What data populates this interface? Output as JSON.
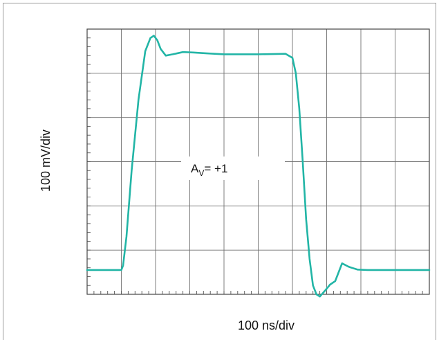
{
  "chart_data": {
    "type": "line",
    "title": "",
    "xlabel": "100 ns/div",
    "ylabel": "100 mV/div",
    "x_divisions": 10,
    "y_divisions": 6,
    "grid": true,
    "xlim": [
      0,
      10
    ],
    "ylim": [
      0,
      6
    ],
    "annotation": {
      "main": "A",
      "subscript": "V",
      "suffix": "= +1"
    },
    "line_color": "#22b5a6",
    "series": [
      {
        "name": "",
        "x": [
          -1.0,
          1.0,
          1.05,
          1.15,
          1.3,
          1.5,
          1.7,
          1.85,
          1.95,
          2.05,
          2.15,
          2.3,
          2.5,
          2.8,
          3.1,
          3.5,
          4.0,
          5.0,
          5.8,
          6.0,
          6.1,
          6.2,
          6.3,
          6.4,
          6.5,
          6.6,
          6.7,
          6.8,
          6.95,
          7.1,
          7.25,
          7.45,
          7.65,
          7.9,
          8.2,
          8.6,
          9.0,
          10.0
        ],
        "y": [
          0.55,
          0.55,
          0.65,
          1.3,
          2.8,
          4.4,
          5.5,
          5.8,
          5.85,
          5.75,
          5.55,
          5.4,
          5.43,
          5.48,
          5.47,
          5.45,
          5.43,
          5.43,
          5.44,
          5.35,
          5.0,
          4.2,
          3.0,
          1.7,
          0.8,
          0.2,
          0.0,
          -0.05,
          0.08,
          0.22,
          0.3,
          0.7,
          0.62,
          0.56,
          0.55,
          0.55,
          0.55,
          0.55
        ]
      }
    ]
  }
}
